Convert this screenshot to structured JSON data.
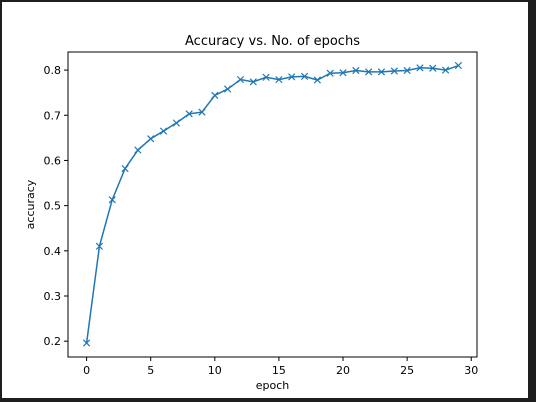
{
  "chart_data": {
    "type": "line",
    "title": "Accuracy vs. No. of epochs",
    "xlabel": "epoch",
    "ylabel": "accuracy",
    "xlim": [
      -1.45,
      30.45
    ],
    "ylim": [
      0.165,
      0.84
    ],
    "xticks": [
      0,
      5,
      10,
      15,
      20,
      25,
      30
    ],
    "yticks": [
      0.2,
      0.3,
      0.4,
      0.5,
      0.6,
      0.7,
      0.8
    ],
    "ytick_labels": [
      "0.2",
      "0.3",
      "0.4",
      "0.5",
      "0.6",
      "0.7",
      "0.8"
    ],
    "grid": false,
    "marker": "x",
    "line_color": "#1f77b4",
    "series": [
      {
        "x": [
          0,
          1,
          2,
          3,
          4,
          5,
          6,
          7,
          8,
          9,
          10,
          11,
          12,
          13,
          14,
          15,
          16,
          17,
          18,
          19,
          20,
          21,
          22,
          23,
          24,
          25,
          26,
          27,
          28,
          29
        ],
        "values": [
          0.196,
          0.41,
          0.513,
          0.582,
          0.623,
          0.648,
          0.665,
          0.683,
          0.703,
          0.707,
          0.744,
          0.758,
          0.779,
          0.774,
          0.784,
          0.779,
          0.785,
          0.786,
          0.778,
          0.793,
          0.794,
          0.799,
          0.796,
          0.796,
          0.798,
          0.799,
          0.805,
          0.804,
          0.8,
          0.81
        ]
      }
    ]
  }
}
